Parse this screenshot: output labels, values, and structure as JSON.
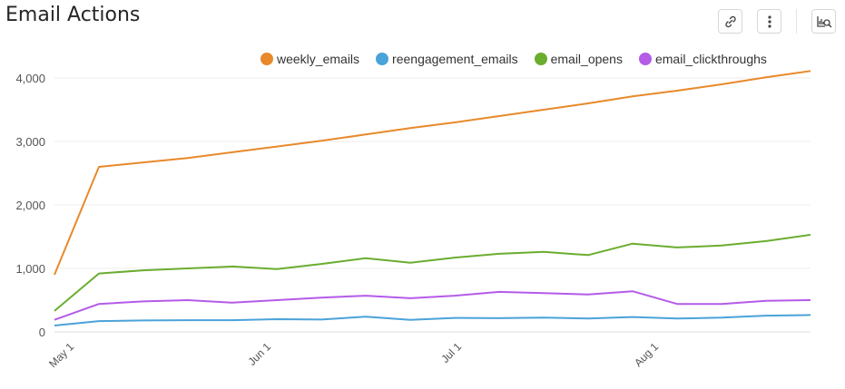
{
  "header": {
    "title": "Email Actions",
    "tools": [
      "link-icon",
      "more-vertical-icon",
      "explore-icon"
    ]
  },
  "chart_data": {
    "type": "line",
    "title": "Email Actions",
    "xlabel": "",
    "ylabel": "",
    "x": [
      "2019-04-29",
      "2019-05-06",
      "2019-05-13",
      "2019-05-20",
      "2019-05-27",
      "2019-06-03",
      "2019-06-10",
      "2019-06-17",
      "2019-06-24",
      "2019-07-01",
      "2019-07-08",
      "2019-07-15",
      "2019-07-22",
      "2019-07-29",
      "2019-08-05",
      "2019-08-12",
      "2019-08-19",
      "2019-08-26"
    ],
    "x_ticks": [
      "May 1",
      "Jun 1",
      "Jul 1",
      "Aug 1"
    ],
    "y_ticks": [
      "0",
      "1,000",
      "2,000",
      "3,000",
      "4,000"
    ],
    "ylim": [
      0,
      4200
    ],
    "grid": true,
    "legend": "top-right",
    "series": [
      {
        "name": "weekly_emails",
        "color": "#e8892b",
        "values": [
          900,
          2600,
          2670,
          2740,
          2830,
          2920,
          3010,
          3110,
          3210,
          3300,
          3400,
          3500,
          3600,
          3710,
          3800,
          3900,
          4010,
          4110
        ]
      },
      {
        "name": "reengagement_emails",
        "color": "#4aa3d9",
        "values": [
          100,
          170,
          180,
          185,
          185,
          200,
          195,
          240,
          190,
          220,
          215,
          225,
          210,
          235,
          210,
          225,
          255,
          265
        ]
      },
      {
        "name": "email_opens",
        "color": "#6aad2f",
        "values": [
          330,
          920,
          970,
          1000,
          1030,
          990,
          1070,
          1160,
          1090,
          1170,
          1230,
          1260,
          1210,
          1390,
          1330,
          1360,
          1430,
          1530
        ]
      },
      {
        "name": "email_clickthroughs",
        "color": "#b45be8",
        "values": [
          190,
          440,
          480,
          500,
          460,
          500,
          540,
          570,
          530,
          570,
          630,
          610,
          590,
          640,
          440,
          440,
          490,
          500
        ]
      }
    ]
  }
}
